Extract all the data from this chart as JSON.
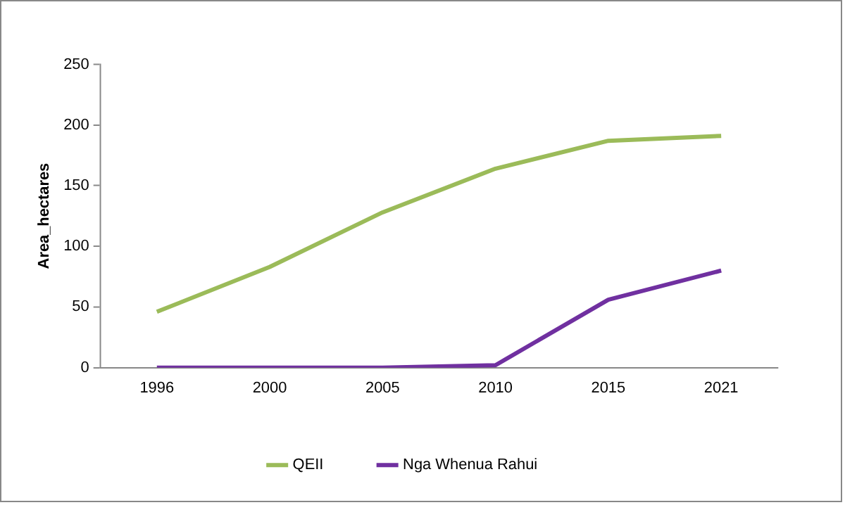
{
  "chart_data": {
    "type": "line",
    "ylabel": "Area_hectares",
    "categories": [
      "1996",
      "2000",
      "2005",
      "2010",
      "2015",
      "2021"
    ],
    "series": [
      {
        "name": "QEII",
        "color": "#9bbb59",
        "values": [
          46,
          83,
          128,
          164,
          187,
          191
        ]
      },
      {
        "name": "Nga Whenua Rahui",
        "color": "#7030a0",
        "values": [
          0,
          0,
          0,
          2,
          56,
          80
        ]
      }
    ],
    "ylim": [
      0,
      250
    ],
    "yticks": [
      0,
      50,
      100,
      150,
      200,
      250
    ],
    "grid": false,
    "legend": "bottom",
    "marker": "none",
    "line_style": "solid"
  }
}
